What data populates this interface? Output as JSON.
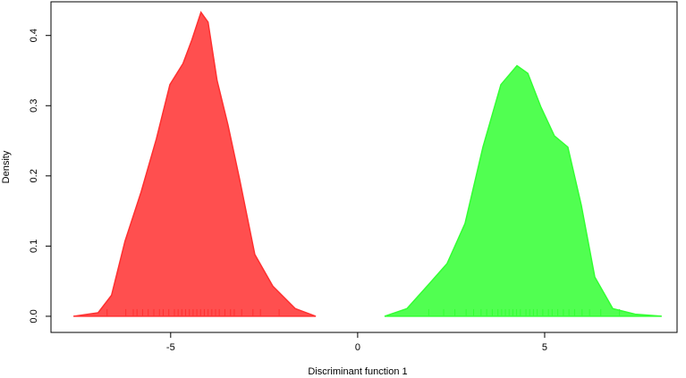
{
  "chart_data": {
    "type": "density",
    "xlabel": "Discriminant function 1",
    "ylabel": "Density",
    "xlim": [
      -8.2,
      8.54
    ],
    "ylim": [
      -0.023,
      0.448
    ],
    "xticks": [
      -5,
      0,
      5
    ],
    "yticks": [
      {
        "value": 0,
        "label": "0.0"
      },
      0.1,
      0.2,
      0.3,
      0.4
    ],
    "series": [
      {
        "color": "#ff3030",
        "x": [
          -7.6,
          -6.94,
          -6.58,
          -6.22,
          -5.79,
          -5.38,
          -5.02,
          -4.67,
          -4.43,
          -4.19,
          -4.0,
          -3.76,
          -3.47,
          -3.16,
          -2.75,
          -2.27,
          -1.67,
          -1.12
        ],
        "values": [
          0,
          0.005,
          0.03,
          0.107,
          0.177,
          0.253,
          0.33,
          0.36,
          0.394,
          0.433,
          0.419,
          0.336,
          0.273,
          0.196,
          0.088,
          0.043,
          0.011,
          0
        ],
        "rug": [
          -6.7,
          -6.2,
          -6.0,
          -5.9,
          -5.75,
          -5.6,
          -5.45,
          -5.3,
          -5.2,
          -5.05,
          -4.9,
          -4.8,
          -4.7,
          -4.6,
          -4.5,
          -4.4,
          -4.3,
          -4.2,
          -4.1,
          -4.0,
          -3.9,
          -3.8,
          -3.7,
          -3.55,
          -3.4,
          -3.3,
          -3.1,
          -2.8,
          -2.6,
          -2.1
        ]
      },
      {
        "color": "#33ff33",
        "x": [
          0.72,
          1.32,
          1.91,
          2.39,
          2.87,
          3.35,
          3.83,
          4.26,
          4.55,
          4.9,
          5.26,
          5.62,
          5.98,
          6.34,
          6.82,
          7.42,
          8.13
        ],
        "values": [
          0,
          0.011,
          0.046,
          0.075,
          0.132,
          0.241,
          0.33,
          0.357,
          0.346,
          0.298,
          0.257,
          0.241,
          0.158,
          0.056,
          0.011,
          0.003,
          0
        ],
        "rug": [
          1.9,
          2.3,
          2.6,
          2.9,
          3.1,
          3.3,
          3.45,
          3.6,
          3.75,
          3.85,
          3.95,
          4.05,
          4.15,
          4.25,
          4.35,
          4.5,
          4.6,
          4.7,
          4.8,
          4.95,
          5.1,
          5.2,
          5.35,
          5.5,
          5.65,
          5.8,
          6.0,
          6.2,
          6.5,
          7.0
        ]
      }
    ]
  }
}
